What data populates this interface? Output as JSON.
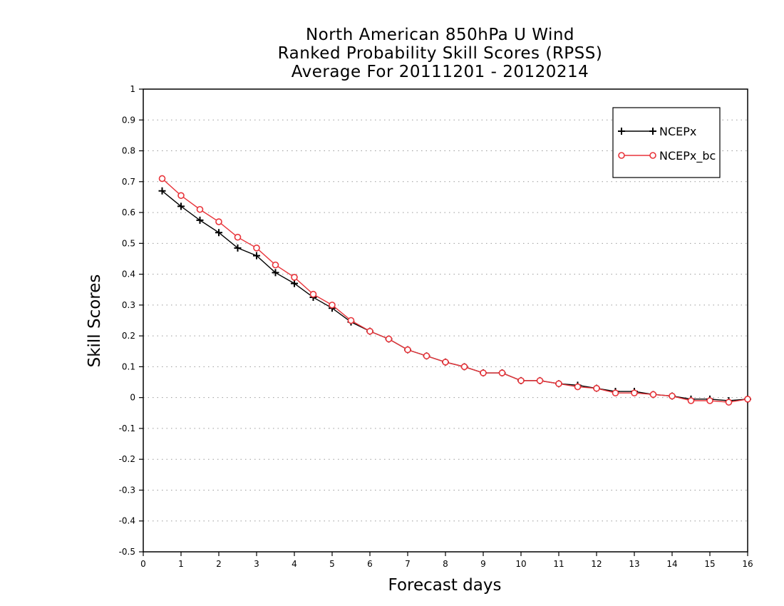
{
  "chart_data": {
    "type": "line",
    "title": [
      "North American 850hPa U Wind",
      "Ranked Probability Skill Scores (RPSS)",
      "Average For 20111201 - 20120214"
    ],
    "xlabel": "Forecast days",
    "ylabel": "Skill Scores",
    "xlim": [
      0,
      16
    ],
    "ylim": [
      -0.5,
      1
    ],
    "xticks": [
      "0",
      "1",
      "2",
      "3",
      "4",
      "5",
      "6",
      "7",
      "8",
      "9",
      "10",
      "11",
      "12",
      "13",
      "14",
      "15",
      "16"
    ],
    "yticks": [
      "-0.5",
      "-0.4",
      "-0.3",
      "-0.2",
      "-0.1",
      "0",
      "0.1",
      "0.2",
      "0.3",
      "0.4",
      "0.5",
      "0.6",
      "0.7",
      "0.8",
      "0.9",
      "1"
    ],
    "grid": "horizontal dotted",
    "legend_position": "top-right",
    "x": [
      0.5,
      1,
      1.5,
      2,
      2.5,
      3,
      3.5,
      4,
      4.5,
      5,
      5.5,
      6,
      6.5,
      7,
      7.5,
      8,
      8.5,
      9,
      9.5,
      10,
      10.5,
      11,
      11.5,
      12,
      12.5,
      13,
      13.5,
      14,
      14.5,
      15,
      15.5,
      16
    ],
    "series": [
      {
        "name": "NCEPx",
        "color": "#000000",
        "marker": "plus",
        "values": [
          0.67,
          0.62,
          0.575,
          0.535,
          0.485,
          0.46,
          0.405,
          0.37,
          0.325,
          0.29,
          0.245,
          0.215,
          0.19,
          0.155,
          0.135,
          0.115,
          0.1,
          0.08,
          0.08,
          0.055,
          0.055,
          0.045,
          0.04,
          0.03,
          0.02,
          0.02,
          0.01,
          0.005,
          -0.005,
          -0.005,
          -0.01,
          -0.005
        ]
      },
      {
        "name": "NCEPx_bc",
        "color": "#e8343a",
        "marker": "circle",
        "values": [
          0.71,
          0.655,
          0.61,
          0.57,
          0.52,
          0.485,
          0.43,
          0.39,
          0.335,
          0.3,
          0.25,
          0.215,
          0.19,
          0.155,
          0.135,
          0.115,
          0.1,
          0.08,
          0.08,
          0.055,
          0.055,
          0.045,
          0.035,
          0.03,
          0.015,
          0.015,
          0.01,
          0.005,
          -0.01,
          -0.01,
          -0.015,
          -0.005
        ]
      }
    ]
  }
}
